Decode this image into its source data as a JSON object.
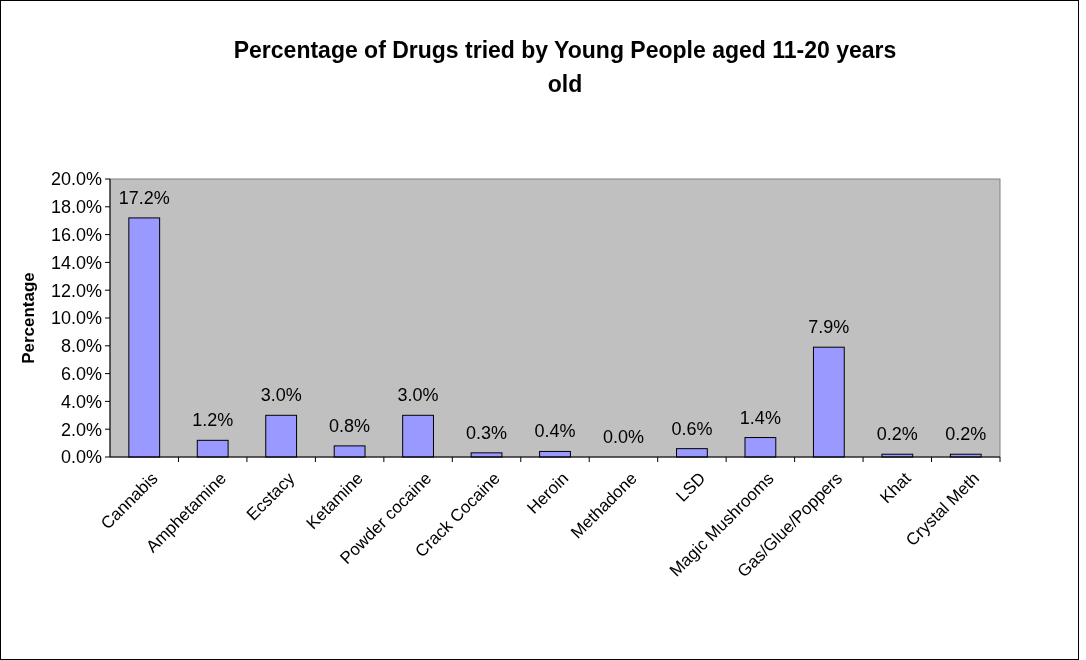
{
  "chart_data": {
    "type": "bar",
    "title": "Percentage of Drugs tried by Young People aged 11-20 years old",
    "ylabel": "Percentage",
    "categories": [
      "Cannabis",
      "Amphetamine",
      "Ecstacy",
      "Ketamine",
      "Powder cocaine",
      "Crack Cocaine",
      "Heroin",
      "Methadone",
      "LSD",
      "Magic Mushrooms",
      "Gas/Glue/Poppers",
      "Khat",
      "Crystal Meth"
    ],
    "values": [
      17.2,
      1.2,
      3.0,
      0.8,
      3.0,
      0.3,
      0.4,
      0.0,
      0.6,
      1.4,
      7.9,
      0.2,
      0.2
    ],
    "value_labels": [
      "17.2%",
      "1.2%",
      "3.0%",
      "0.8%",
      "3.0%",
      "0.3%",
      "0.4%",
      "0.0%",
      "0.6%",
      "1.4%",
      "7.9%",
      "0.2%",
      "0.2%"
    ],
    "color": "#9999ff",
    "ylim": [
      0,
      20
    ],
    "yticks": [
      {
        "value": 0,
        "label": "0.0%"
      },
      {
        "value": 2,
        "label": "2.0%"
      },
      {
        "value": 4,
        "label": "4.0%"
      },
      {
        "value": 6,
        "label": "6.0%"
      },
      {
        "value": 8,
        "label": "8.0%"
      },
      {
        "value": 10,
        "label": "10.0%"
      },
      {
        "value": 12,
        "label": "12.0%"
      },
      {
        "value": 14,
        "label": "14.0%"
      },
      {
        "value": 16,
        "label": "16.0%"
      },
      {
        "value": 18,
        "label": "18.0%"
      },
      {
        "value": 20,
        "label": "20.0%"
      }
    ],
    "grid": false
  }
}
